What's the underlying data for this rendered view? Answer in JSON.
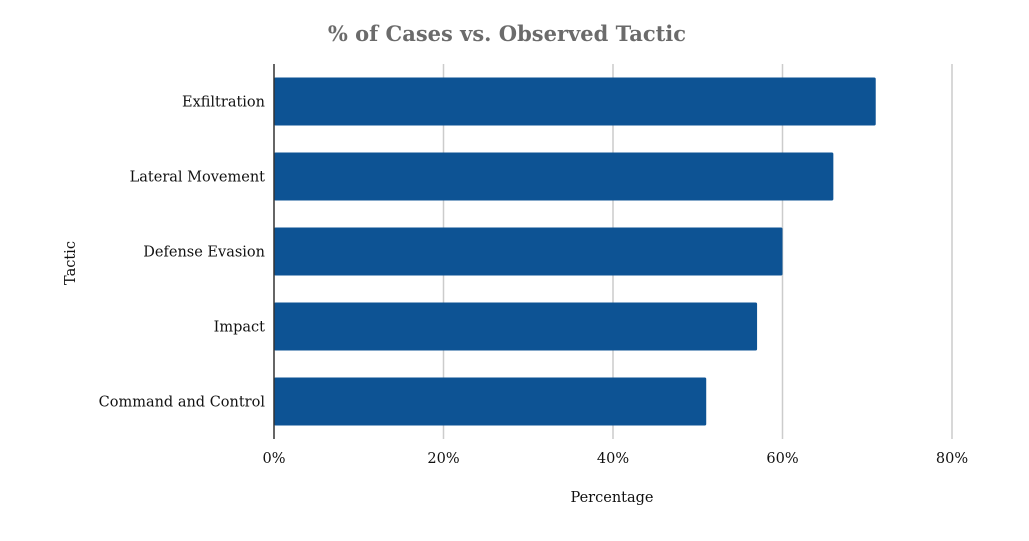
{
  "chart_data": {
    "type": "bar",
    "orientation": "horizontal",
    "title": "% of Cases vs. Observed Tactic",
    "xlabel": "Percentage",
    "ylabel": "Tactic",
    "categories": [
      "Exfiltration",
      "Lateral Movement",
      "Defense Evasion",
      "Impact",
      "Command and Control"
    ],
    "values": [
      71,
      66,
      60,
      57,
      51
    ],
    "xlim": [
      0,
      80
    ],
    "x_ticks": [
      "0%",
      "20%",
      "40%",
      "60%",
      "80%"
    ],
    "grid": true,
    "legend": "none",
    "colors": {
      "bar": "#0d5394",
      "title": "#6b6b6b",
      "gridline": "#cccccc",
      "axis": "#333333"
    }
  }
}
